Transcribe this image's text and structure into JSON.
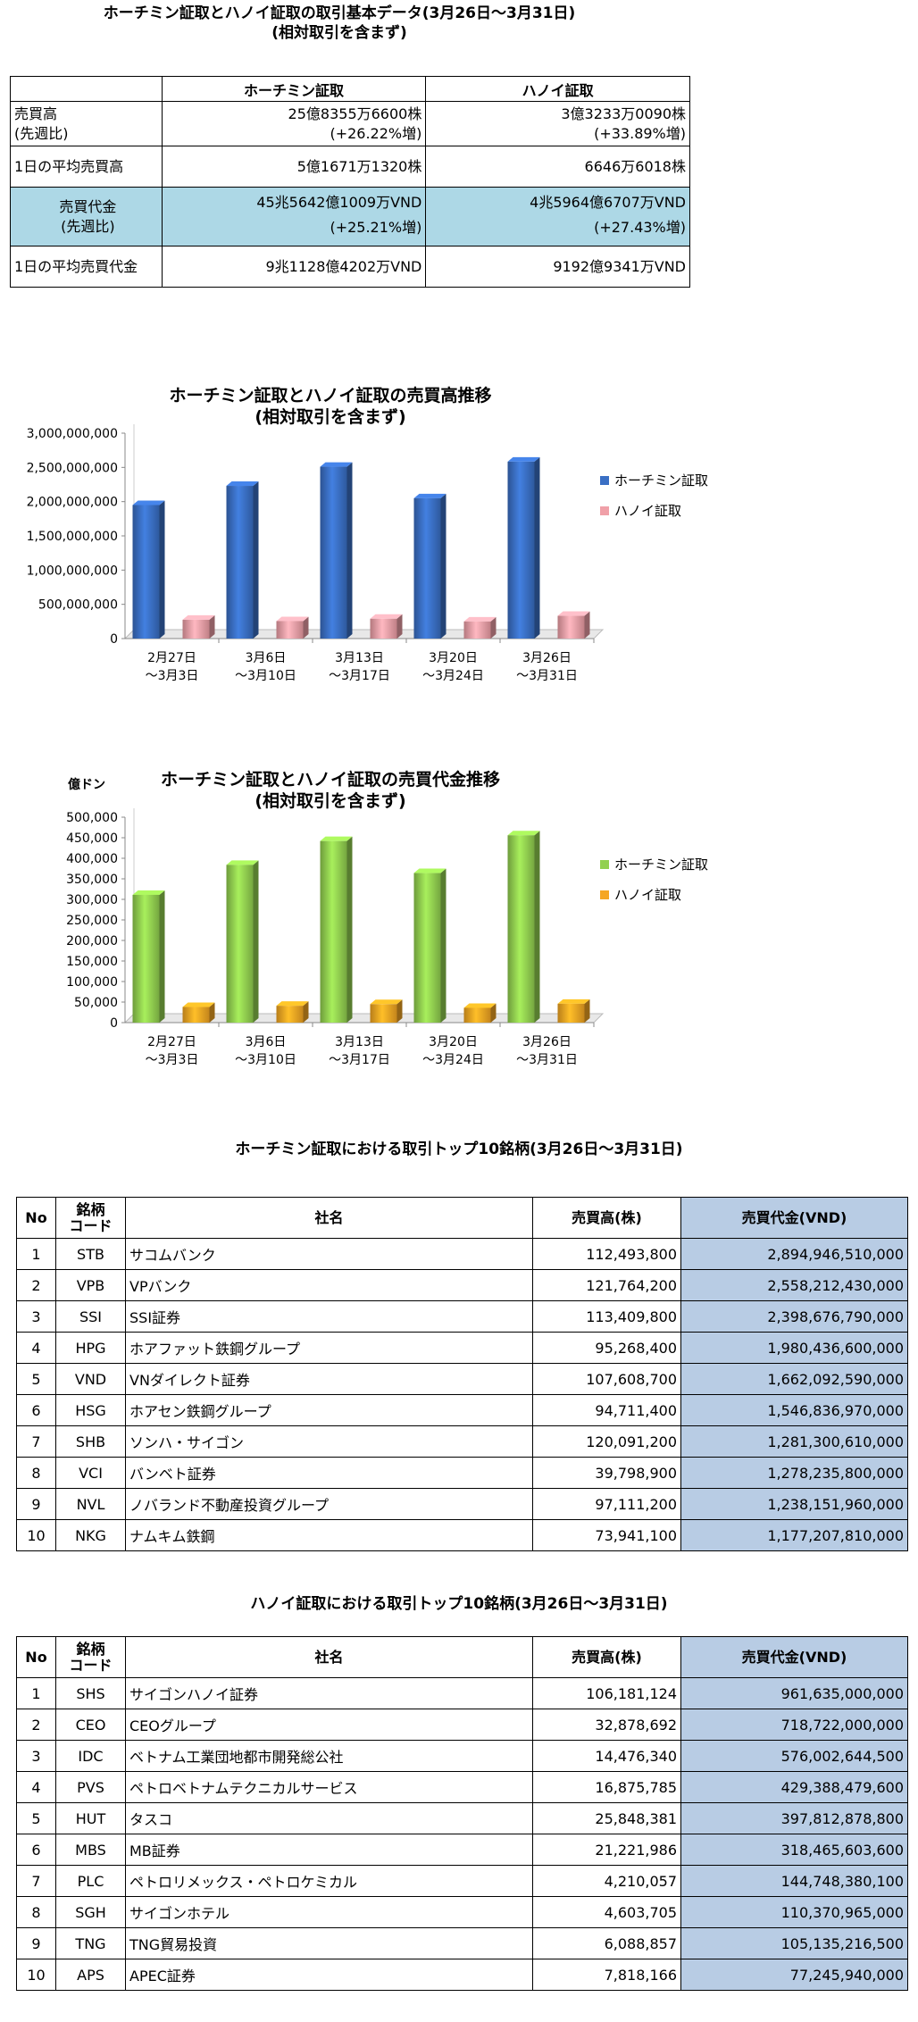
{
  "summary": {
    "title_line1": "ホーチミン証取とハノイ証取の取引基本データ(3月26日〜3月31日)",
    "title_line2": "(相対取引を含まず)",
    "col_hcm": "ホーチミン証取",
    "col_hn": "ハノイ証取",
    "rows": [
      {
        "label1": "売買高",
        "label2": "(先週比)",
        "hcm1": "25億8355万6600株",
        "hcm2": "(+26.22%増)",
        "hn1": "3億3233万0090株",
        "hn2": "(+33.89%増)"
      },
      {
        "label1": "1日の平均売買高",
        "label2": "",
        "hcm1": "5億1671万1320株",
        "hcm2": "",
        "hn1": "6646万6018株",
        "hn2": ""
      },
      {
        "label1": "売買代金",
        "label2": "(先週比)",
        "hcm1": "45兆5642億1009万VND",
        "hcm2": "(+25.21%増)",
        "hn1": "4兆5964億6707万VND",
        "hn2": "(+27.43%増)"
      },
      {
        "label1": "1日の平均売買代金",
        "label2": "",
        "hcm1": "9兆1128億4202万VND",
        "hcm2": "",
        "hn1": "9192億9341万VND",
        "hn2": ""
      }
    ]
  },
  "chart_data": [
    {
      "type": "bar",
      "title": "ホーチミン証取とハノイ証取の売買高推移",
      "subtitle": "(相対取引を含まず)",
      "ylabel": "",
      "categories": [
        [
          "2月27日",
          "〜3月3日"
        ],
        [
          "3月6日",
          "〜3月10日"
        ],
        [
          "3月13日",
          "〜3月17日"
        ],
        [
          "3月20日",
          "〜3月24日"
        ],
        [
          "3月26日",
          "〜3月31日"
        ]
      ],
      "yticks": [
        "0",
        "500,000,000",
        "1,000,000,000",
        "1,500,000,000",
        "2,000,000,000",
        "2,500,000,000",
        "3,000,000,000"
      ],
      "ylim": [
        0,
        3000000000
      ],
      "legend": "right",
      "series": [
        {
          "name": "ホーチミン証取",
          "color": "#3a6fc4",
          "values": [
            1950000000,
            2230000000,
            2510000000,
            2050000000,
            2584000000
          ]
        },
        {
          "name": "ハノイ証取",
          "color": "#f0a0a8",
          "values": [
            275000000,
            255000000,
            290000000,
            250000000,
            332000000
          ]
        }
      ]
    },
    {
      "type": "bar",
      "title": "ホーチミン証取とハノイ証取の売買代金推移",
      "subtitle": "(相対取引を含まず)",
      "ylabel": "億ドン",
      "categories": [
        [
          "2月27日",
          "〜3月3日"
        ],
        [
          "3月6日",
          "〜3月10日"
        ],
        [
          "3月13日",
          "〜3月17日"
        ],
        [
          "3月20日",
          "〜3月24日"
        ],
        [
          "3月26日",
          "〜3月31日"
        ]
      ],
      "yticks": [
        "0",
        "50,000",
        "100,000",
        "150,000",
        "200,000",
        "250,000",
        "300,000",
        "350,000",
        "400,000",
        "450,000",
        "500,000"
      ],
      "ylim": [
        0,
        500000
      ],
      "legend": "right",
      "series": [
        {
          "name": "ホーチミン証取",
          "color": "#92d050",
          "values": [
            311000,
            384000,
            442000,
            364000,
            456000
          ]
        },
        {
          "name": "ハノイ証取",
          "color": "#f5a623",
          "values": [
            38000,
            41000,
            45000,
            36000,
            46000
          ]
        }
      ]
    }
  ],
  "hcm_rank": {
    "title": "ホーチミン証取における取引トップ10銘柄(3月26日〜3月31日)",
    "headers": {
      "no": "No",
      "code1": "銘柄",
      "code2": "コード",
      "name": "社名",
      "volume": "売買高(株)",
      "amount": "売買代金(VND)"
    },
    "rows": [
      {
        "no": "1",
        "code": "STB",
        "name": "サコムバンク",
        "volume": "112,493,800",
        "amount": "2,894,946,510,000"
      },
      {
        "no": "2",
        "code": "VPB",
        "name": "VPバンク",
        "volume": "121,764,200",
        "amount": "2,558,212,430,000"
      },
      {
        "no": "3",
        "code": "SSI",
        "name": "SSI証券",
        "volume": "113,409,800",
        "amount": "2,398,676,790,000"
      },
      {
        "no": "4",
        "code": "HPG",
        "name": "ホアファット鉄鋼グループ",
        "volume": "95,268,400",
        "amount": "1,980,436,600,000"
      },
      {
        "no": "5",
        "code": "VND",
        "name": "VNダイレクト証券",
        "volume": "107,608,700",
        "amount": "1,662,092,590,000"
      },
      {
        "no": "6",
        "code": "HSG",
        "name": "ホアセン鉄鋼グループ",
        "volume": "94,711,400",
        "amount": "1,546,836,970,000"
      },
      {
        "no": "7",
        "code": "SHB",
        "name": "ソンハ・サイゴン",
        "volume": "120,091,200",
        "amount": "1,281,300,610,000"
      },
      {
        "no": "8",
        "code": "VCI",
        "name": "バンベト証券",
        "volume": "39,798,900",
        "amount": "1,278,235,800,000"
      },
      {
        "no": "9",
        "code": "NVL",
        "name": "ノバランド不動産投資グループ",
        "volume": "97,111,200",
        "amount": "1,238,151,960,000"
      },
      {
        "no": "10",
        "code": "NKG",
        "name": "ナムキム鉄鋼",
        "volume": "73,941,100",
        "amount": "1,177,207,810,000"
      }
    ]
  },
  "hn_rank": {
    "title": "ハノイ証取における取引トップ10銘柄(3月26日〜3月31日)",
    "headers": {
      "no": "No",
      "code1": "銘柄",
      "code2": "コード",
      "name": "社名",
      "volume": "売買高(株)",
      "amount": "売買代金(VND)"
    },
    "rows": [
      {
        "no": "1",
        "code": "SHS",
        "name": "サイゴンハノイ証券",
        "volume": "106,181,124",
        "amount": "961,635,000,000"
      },
      {
        "no": "2",
        "code": "CEO",
        "name": "CEOグループ",
        "volume": "32,878,692",
        "amount": "718,722,000,000"
      },
      {
        "no": "3",
        "code": "IDC",
        "name": "ベトナム工業団地都市開発総公社",
        "volume": "14,476,340",
        "amount": "576,002,644,500"
      },
      {
        "no": "4",
        "code": "PVS",
        "name": "ペトロベトナムテクニカルサービス",
        "volume": "16,875,785",
        "amount": "429,388,479,600"
      },
      {
        "no": "5",
        "code": "HUT",
        "name": "タスコ",
        "volume": "25,848,381",
        "amount": "397,812,878,800"
      },
      {
        "no": "6",
        "code": "MBS",
        "name": "MB証券",
        "volume": "21,221,986",
        "amount": "318,465,603,600"
      },
      {
        "no": "7",
        "code": "PLC",
        "name": "ペトロリメックス・ペトロケミカル",
        "volume": "4,210,057",
        "amount": "144,748,380,100"
      },
      {
        "no": "8",
        "code": "SGH",
        "name": "サイゴンホテル",
        "volume": "4,603,705",
        "amount": "110,370,965,000"
      },
      {
        "no": "9",
        "code": "TNG",
        "name": "TNG貿易投資",
        "volume": "6,088,857",
        "amount": "105,135,216,500"
      },
      {
        "no": "10",
        "code": "APS",
        "name": "APEC証券",
        "volume": "7,818,166",
        "amount": "77,245,940,000"
      }
    ]
  }
}
